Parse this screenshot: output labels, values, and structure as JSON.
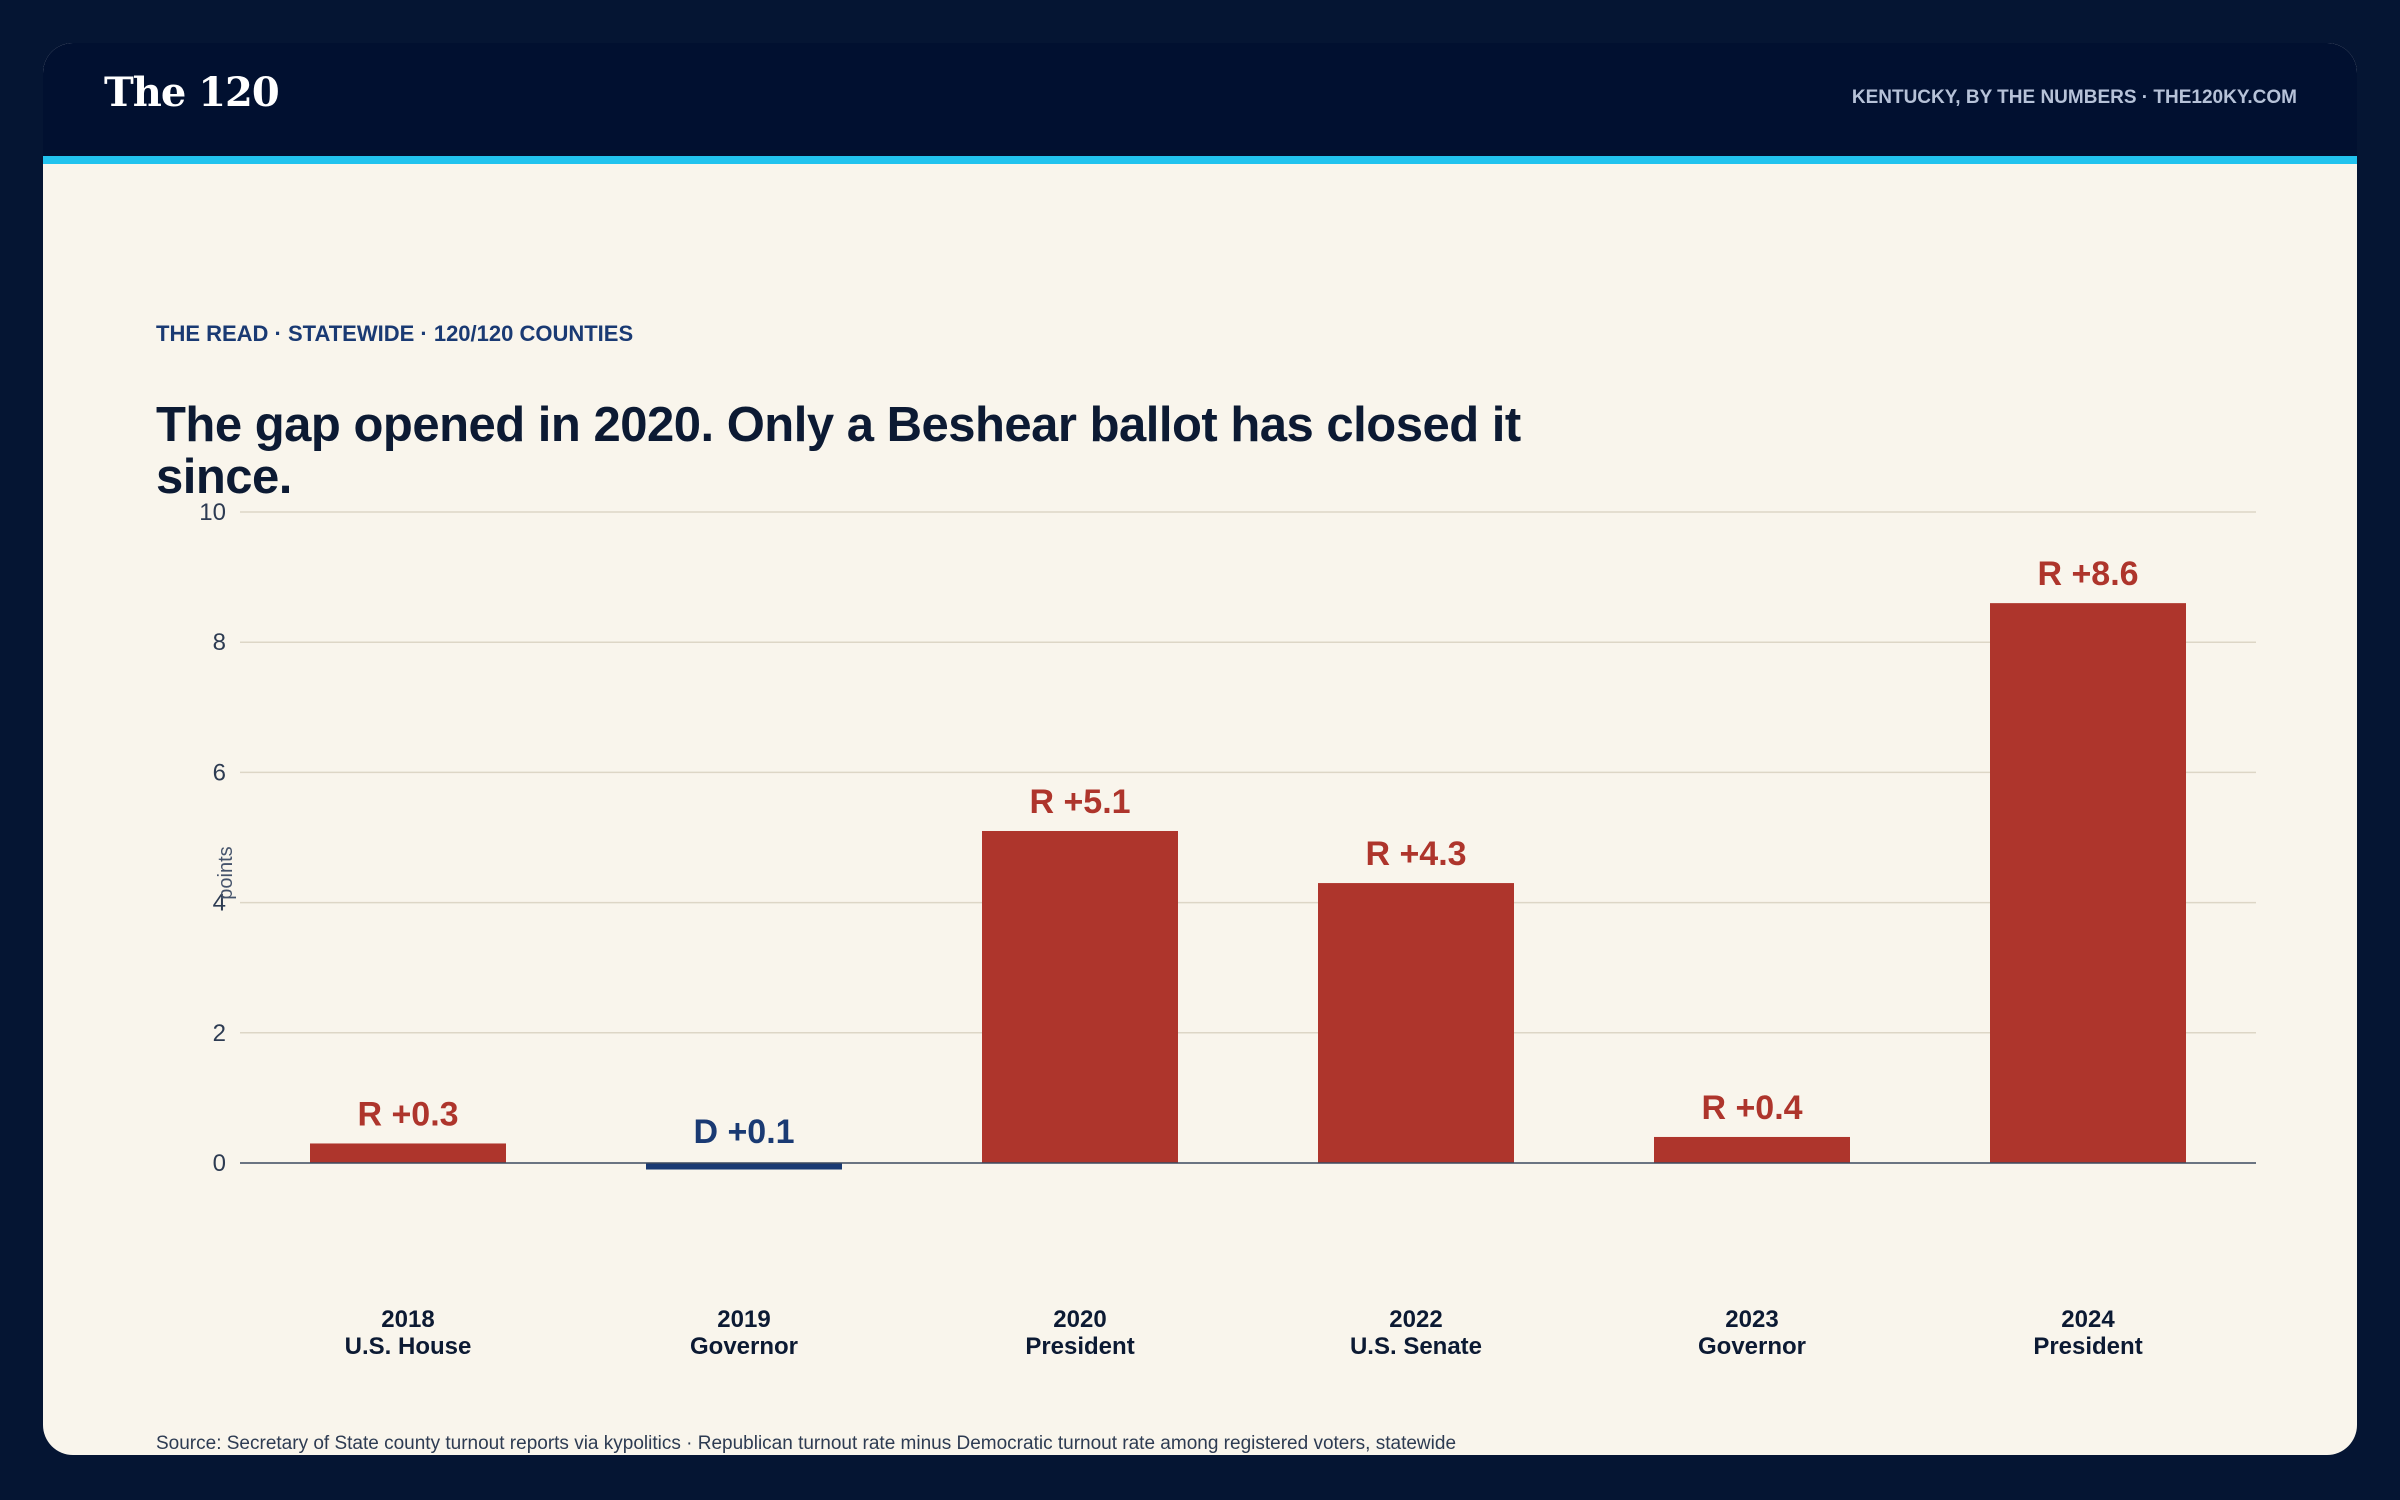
{
  "header": {
    "logo": "The 120",
    "tagline": "KENTUCKY, BY THE NUMBERS · THE120KY.COM"
  },
  "kicker": "THE READ · STATEWIDE · 120/120 COUNTIES",
  "headline": "The gap opened in 2020. Only a Beshear ballot has closed it since.",
  "source": "Source: Secretary of State county turnout reports via kypolitics · Republican turnout rate minus Democratic turnout rate among registered voters, statewide",
  "colors": {
    "republican": "#ae352c",
    "democratic": "#1a3a73",
    "background": "#051533",
    "panel": "#f9f5ec",
    "accent": "#22c3ee"
  },
  "chart_data": {
    "type": "bar",
    "title": "",
    "xlabel": "",
    "ylabel": "points",
    "ylim": [
      0,
      10
    ],
    "yticks": [
      0,
      2,
      4,
      6,
      8,
      10
    ],
    "grid": true,
    "categories": [
      {
        "year": "2018",
        "office": "U.S. House"
      },
      {
        "year": "2019",
        "office": "Governor"
      },
      {
        "year": "2020",
        "office": "President"
      },
      {
        "year": "2022",
        "office": "U.S. Senate"
      },
      {
        "year": "2023",
        "office": "Governor"
      },
      {
        "year": "2024",
        "office": "President"
      }
    ],
    "values": [
      0.3,
      -0.1,
      5.1,
      4.3,
      0.4,
      8.6
    ],
    "labels": [
      "R +0.3",
      "D +0.1",
      "R +5.1",
      "R +4.3",
      "R +0.4",
      "R +8.6"
    ],
    "party": [
      "R",
      "D",
      "R",
      "R",
      "R",
      "R"
    ]
  }
}
